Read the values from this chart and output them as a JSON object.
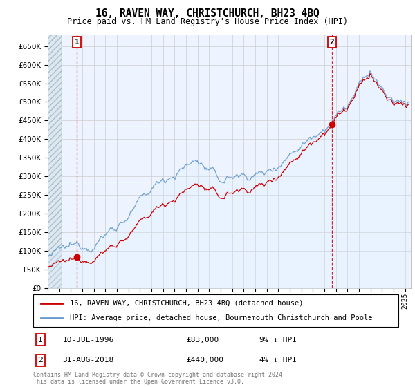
{
  "title": "16, RAVEN WAY, CHRISTCHURCH, BH23 4BQ",
  "subtitle": "Price paid vs. HM Land Registry's House Price Index (HPI)",
  "hpi_label": "HPI: Average price, detached house, Bournemouth Christchurch and Poole",
  "sale_label": "16, RAVEN WAY, CHRISTCHURCH, BH23 4BQ (detached house)",
  "annotation1_label": "1",
  "annotation2_label": "2",
  "sale1_date": "10-JUL-1996",
  "sale1_price": "£83,000",
  "sale1_hpi": "9% ↓ HPI",
  "sale2_date": "31-AUG-2018",
  "sale2_price": "£440,000",
  "sale2_hpi": "4% ↓ HPI",
  "footnote": "Contains HM Land Registry data © Crown copyright and database right 2024.\nThis data is licensed under the Open Government Licence v3.0.",
  "sale_color": "#cc0000",
  "hpi_color": "#6699cc",
  "hpi_fill_color": "#ddeeff",
  "annotation_box_color": "#cc0000",
  "grid_color": "#cccccc",
  "bg_color": "#ffffff",
  "plot_bg_color": "#eef4ff",
  "ylim": [
    0,
    680000
  ],
  "yticks": [
    0,
    50000,
    100000,
    150000,
    200000,
    250000,
    300000,
    350000,
    400000,
    450000,
    500000,
    550000,
    600000,
    650000
  ],
  "xlim_start": 1994.0,
  "xlim_end": 2025.5,
  "sale1_x": 1996.53,
  "sale1_y": 83000,
  "sale2_x": 2018.67,
  "sale2_y": 440000,
  "hatch_end": 1995.2,
  "data_end": 2025.2
}
